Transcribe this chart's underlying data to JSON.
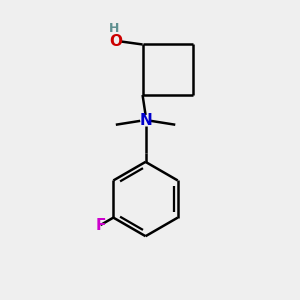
{
  "bg_color": "#efefef",
  "bond_color": "#000000",
  "O_color": "#cc0000",
  "H_color": "#5f9090",
  "N_color": "#0000cc",
  "F_color": "#cc00cc",
  "line_width": 1.8,
  "font_size_atom": 11,
  "font_size_H": 9,
  "figsize": [
    3.0,
    3.0
  ],
  "dpi": 100,
  "xlim": [
    0,
    10
  ],
  "ylim": [
    0,
    10
  ]
}
